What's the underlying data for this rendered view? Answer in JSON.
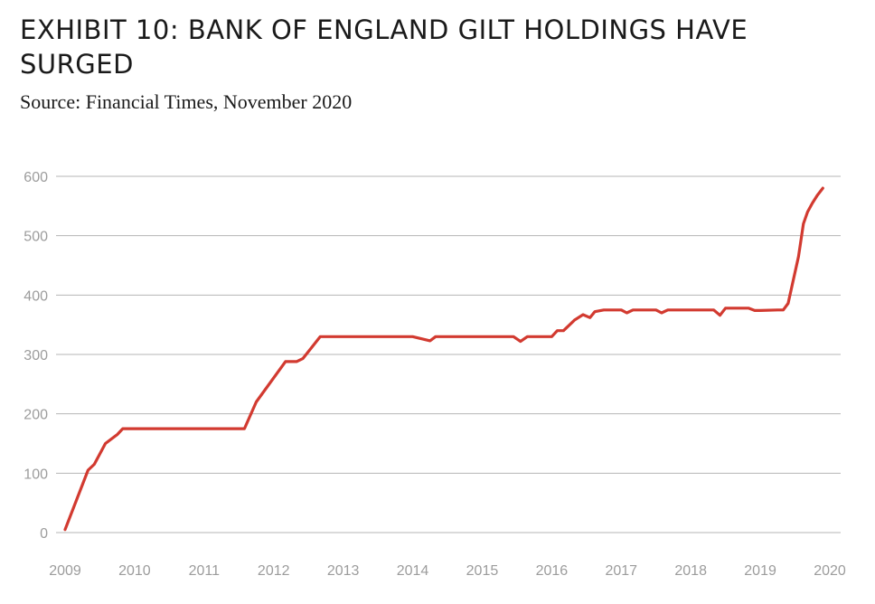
{
  "title": "EXHIBIT 10: BANK OF ENGLAND GILT HOLDINGS HAVE SURGED",
  "subtitle": "Source: Financial Times, November 2020",
  "chart_data": {
    "type": "line",
    "title": "EXHIBIT 10: BANK OF ENGLAND GILT HOLDINGS HAVE SURGED",
    "subtitle": "Source: Financial Times, November 2020",
    "xlabel": "",
    "ylabel": "",
    "x_ticks": [
      "2009",
      "2010",
      "2011",
      "2012",
      "2013",
      "2014",
      "2015",
      "2016",
      "2017",
      "2018",
      "2019",
      "2020"
    ],
    "y_ticks": [
      0,
      100,
      200,
      300,
      400,
      500,
      600
    ],
    "ylim": [
      0,
      600
    ],
    "xlim": [
      2009.0,
      2020.0
    ],
    "grid": "horizontal",
    "legend": "none",
    "color": "#d23a30",
    "series": [
      {
        "name": "",
        "x": [
          2009.0,
          2009.33,
          2009.42,
          2009.58,
          2009.75,
          2009.83,
          2010.0,
          2011.0,
          2011.58,
          2011.75,
          2012.17,
          2012.33,
          2012.42,
          2012.67,
          2013.0,
          2014.0,
          2014.25,
          2014.33,
          2014.5,
          2015.0,
          2015.45,
          2015.55,
          2015.65,
          2016.0,
          2016.08,
          2016.17,
          2016.33,
          2016.45,
          2016.55,
          2016.62,
          2016.75,
          2017.0,
          2017.08,
          2017.17,
          2017.5,
          2017.58,
          2017.67,
          2018.0,
          2018.33,
          2018.42,
          2018.5,
          2018.83,
          2018.92,
          2019.0,
          2019.25,
          2019.33,
          2019.4,
          2019.55,
          2019.62,
          2019.68,
          2019.75,
          2019.82,
          2019.9
        ],
        "values": [
          5,
          105,
          115,
          150,
          165,
          175,
          175,
          175,
          175,
          220,
          288,
          288,
          293,
          330,
          330,
          330,
          323,
          330,
          330,
          330,
          330,
          322,
          330,
          330,
          340,
          340,
          358,
          367,
          362,
          372,
          375,
          375,
          370,
          375,
          375,
          370,
          375,
          375,
          375,
          366,
          378,
          378,
          374,
          374,
          375,
          375,
          386,
          465,
          520,
          540,
          555,
          568,
          580
        ]
      }
    ]
  }
}
